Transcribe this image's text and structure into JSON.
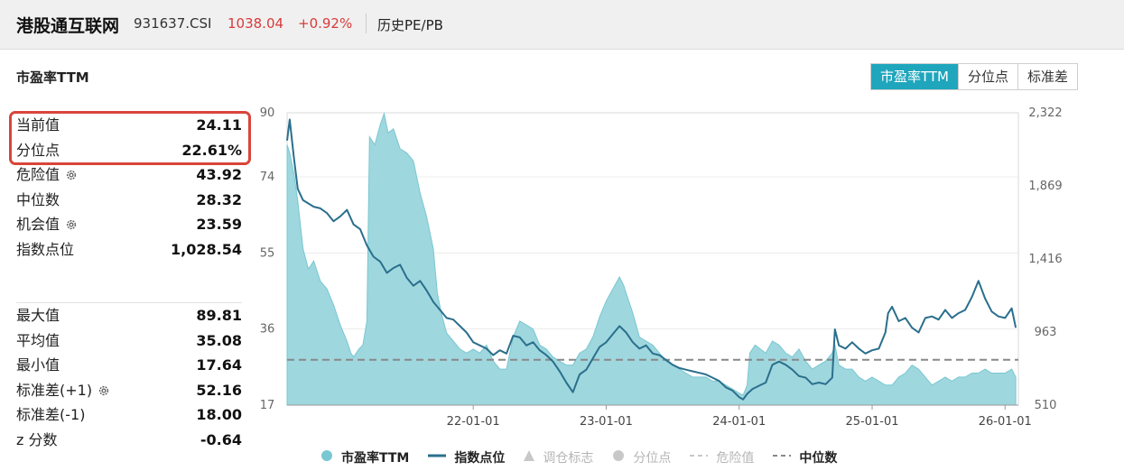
{
  "header": {
    "title": "港股通互联网",
    "code": "931637.CSI",
    "price": "1038.04",
    "change": "+0.92%",
    "link": "历史PE/PB"
  },
  "section_title": "市盈率TTM",
  "tabs": [
    {
      "label": "市盈率TTM",
      "active": true
    },
    {
      "label": "分位点",
      "active": false
    },
    {
      "label": "标准差",
      "active": false
    }
  ],
  "stats_top": [
    {
      "label": "当前值",
      "value": "24.11",
      "gear": false
    },
    {
      "label": "分位点",
      "value": "22.61%",
      "gear": false
    },
    {
      "label": "危险值",
      "value": "43.92",
      "gear": true
    },
    {
      "label": "中位数",
      "value": "28.32",
      "gear": false
    },
    {
      "label": "机会值",
      "value": "23.59",
      "gear": true
    },
    {
      "label": "指数点位",
      "value": "1,028.54",
      "gear": false
    }
  ],
  "stats_bottom": [
    {
      "label": "最大值",
      "value": "89.81",
      "gear": false
    },
    {
      "label": "平均值",
      "value": "35.08",
      "gear": false
    },
    {
      "label": "最小值",
      "value": "17.64",
      "gear": false
    },
    {
      "label": "标准差(+1)",
      "value": "52.16",
      "gear": true
    },
    {
      "label": "标准差(-1)",
      "value": "18.00",
      "gear": false
    },
    {
      "label": "z 分数",
      "value": "-0.64",
      "gear": false
    }
  ],
  "colors": {
    "accent": "#1fa6bd",
    "area_fill": "#9fd7de",
    "area_stroke": "#79c7d2",
    "index_line": "#2a6f8c",
    "median_line": "#888888",
    "highlight": "#d9453a",
    "price_up": "#d93a3a"
  },
  "chart_data": {
    "type": "area",
    "left_ticks": [
      "90",
      "74",
      "55",
      "36",
      "17"
    ],
    "right_ticks": [
      "2,322",
      "1,869",
      "1,416",
      "963",
      "510"
    ],
    "left_ylim": [
      17,
      90
    ],
    "right_ylim": [
      510,
      2322
    ],
    "x_ticks": [
      {
        "label": "22-01-01",
        "x": 2022.0
      },
      {
        "label": "23-01-01",
        "x": 2023.0
      },
      {
        "label": "24-01-01",
        "x": 2024.0
      },
      {
        "label": "25-01-01",
        "x": 2025.0
      },
      {
        "label": "26-01-01",
        "x": 2026.0
      }
    ],
    "xlim": [
      2020.6,
      2026.1
    ],
    "median": 28.32,
    "series": [
      {
        "name": "市盈率TTM",
        "kind": "area",
        "axis": "left",
        "points": [
          [
            2020.6,
            82
          ],
          [
            2020.62,
            80
          ],
          [
            2020.65,
            75
          ],
          [
            2020.68,
            68
          ],
          [
            2020.72,
            56
          ],
          [
            2020.76,
            51
          ],
          [
            2020.8,
            53
          ],
          [
            2020.85,
            48
          ],
          [
            2020.9,
            46
          ],
          [
            2020.95,
            42
          ],
          [
            2021.0,
            37
          ],
          [
            2021.05,
            33
          ],
          [
            2021.08,
            30
          ],
          [
            2021.1,
            29
          ],
          [
            2021.14,
            31
          ],
          [
            2021.17,
            32
          ],
          [
            2021.2,
            38
          ],
          [
            2021.22,
            84
          ],
          [
            2021.26,
            82
          ],
          [
            2021.3,
            87
          ],
          [
            2021.33,
            89.8
          ],
          [
            2021.36,
            85
          ],
          [
            2021.4,
            86
          ],
          [
            2021.45,
            81
          ],
          [
            2021.5,
            80
          ],
          [
            2021.55,
            78
          ],
          [
            2021.6,
            70
          ],
          [
            2021.65,
            64
          ],
          [
            2021.7,
            56
          ],
          [
            2021.73,
            45
          ],
          [
            2021.76,
            40
          ],
          [
            2021.8,
            35
          ],
          [
            2021.85,
            33
          ],
          [
            2021.9,
            31
          ],
          [
            2021.95,
            30
          ],
          [
            2022.0,
            31
          ],
          [
            2022.05,
            30
          ],
          [
            2022.1,
            32
          ],
          [
            2022.15,
            28
          ],
          [
            2022.2,
            26
          ],
          [
            2022.25,
            26
          ],
          [
            2022.3,
            34
          ],
          [
            2022.35,
            38
          ],
          [
            2022.4,
            37
          ],
          [
            2022.45,
            36
          ],
          [
            2022.5,
            32
          ],
          [
            2022.55,
            31
          ],
          [
            2022.6,
            29
          ],
          [
            2022.65,
            28
          ],
          [
            2022.7,
            27
          ],
          [
            2022.75,
            27
          ],
          [
            2022.8,
            30
          ],
          [
            2022.85,
            31
          ],
          [
            2022.9,
            34
          ],
          [
            2022.95,
            39
          ],
          [
            2023.0,
            43
          ],
          [
            2023.05,
            46
          ],
          [
            2023.1,
            49
          ],
          [
            2023.13,
            47
          ],
          [
            2023.17,
            43
          ],
          [
            2023.2,
            40
          ],
          [
            2023.25,
            34
          ],
          [
            2023.3,
            33
          ],
          [
            2023.35,
            32
          ],
          [
            2023.4,
            30
          ],
          [
            2023.45,
            28
          ],
          [
            2023.5,
            27
          ],
          [
            2023.55,
            26
          ],
          [
            2023.6,
            25
          ],
          [
            2023.65,
            24
          ],
          [
            2023.7,
            24
          ],
          [
            2023.75,
            24
          ],
          [
            2023.8,
            23
          ],
          [
            2023.85,
            23
          ],
          [
            2023.9,
            22
          ],
          [
            2023.95,
            21
          ],
          [
            2024.0,
            20
          ],
          [
            2024.03,
            19.5
          ],
          [
            2024.06,
            22
          ],
          [
            2024.08,
            30
          ],
          [
            2024.12,
            32
          ],
          [
            2024.16,
            31
          ],
          [
            2024.2,
            30
          ],
          [
            2024.25,
            33
          ],
          [
            2024.3,
            32
          ],
          [
            2024.35,
            30
          ],
          [
            2024.4,
            29
          ],
          [
            2024.45,
            31
          ],
          [
            2024.5,
            28
          ],
          [
            2024.55,
            26
          ],
          [
            2024.6,
            27
          ],
          [
            2024.65,
            28
          ],
          [
            2024.7,
            30
          ],
          [
            2024.72,
            32
          ],
          [
            2024.75,
            27
          ],
          [
            2024.8,
            26
          ],
          [
            2024.85,
            26
          ],
          [
            2024.9,
            24
          ],
          [
            2024.95,
            23
          ],
          [
            2025.0,
            24
          ],
          [
            2025.05,
            23
          ],
          [
            2025.1,
            22
          ],
          [
            2025.15,
            22
          ],
          [
            2025.2,
            24
          ],
          [
            2025.25,
            25
          ],
          [
            2025.3,
            27
          ],
          [
            2025.35,
            26
          ],
          [
            2025.4,
            24
          ],
          [
            2025.45,
            22
          ],
          [
            2025.5,
            23
          ],
          [
            2025.55,
            24
          ],
          [
            2025.6,
            23
          ],
          [
            2025.65,
            24
          ],
          [
            2025.7,
            24
          ],
          [
            2025.75,
            25
          ],
          [
            2025.8,
            25
          ],
          [
            2025.85,
            26
          ],
          [
            2025.9,
            25
          ],
          [
            2025.95,
            25
          ],
          [
            2026.0,
            25
          ],
          [
            2026.05,
            26
          ],
          [
            2026.08,
            24
          ]
        ]
      },
      {
        "name": "指数点位",
        "kind": "line",
        "axis": "right",
        "points": [
          [
            2020.6,
            2150
          ],
          [
            2020.62,
            2280
          ],
          [
            2020.65,
            2050
          ],
          [
            2020.68,
            1850
          ],
          [
            2020.72,
            1780
          ],
          [
            2020.76,
            1760
          ],
          [
            2020.8,
            1740
          ],
          [
            2020.85,
            1730
          ],
          [
            2020.9,
            1700
          ],
          [
            2020.95,
            1650
          ],
          [
            2021.0,
            1680
          ],
          [
            2021.05,
            1720
          ],
          [
            2021.1,
            1630
          ],
          [
            2021.15,
            1600
          ],
          [
            2021.2,
            1500
          ],
          [
            2021.25,
            1430
          ],
          [
            2021.3,
            1400
          ],
          [
            2021.35,
            1330
          ],
          [
            2021.4,
            1360
          ],
          [
            2021.45,
            1380
          ],
          [
            2021.5,
            1300
          ],
          [
            2021.55,
            1250
          ],
          [
            2021.6,
            1280
          ],
          [
            2021.65,
            1220
          ],
          [
            2021.7,
            1150
          ],
          [
            2021.75,
            1100
          ],
          [
            2021.8,
            1050
          ],
          [
            2021.85,
            1040
          ],
          [
            2021.9,
            1000
          ],
          [
            2021.95,
            960
          ],
          [
            2022.0,
            900
          ],
          [
            2022.05,
            880
          ],
          [
            2022.1,
            860
          ],
          [
            2022.15,
            820
          ],
          [
            2022.2,
            850
          ],
          [
            2022.25,
            830
          ],
          [
            2022.3,
            940
          ],
          [
            2022.35,
            930
          ],
          [
            2022.4,
            880
          ],
          [
            2022.45,
            900
          ],
          [
            2022.5,
            850
          ],
          [
            2022.55,
            820
          ],
          [
            2022.6,
            780
          ],
          [
            2022.65,
            720
          ],
          [
            2022.7,
            650
          ],
          [
            2022.75,
            590
          ],
          [
            2022.8,
            700
          ],
          [
            2022.85,
            730
          ],
          [
            2022.9,
            800
          ],
          [
            2022.95,
            870
          ],
          [
            2023.0,
            900
          ],
          [
            2023.05,
            950
          ],
          [
            2023.1,
            1000
          ],
          [
            2023.15,
            960
          ],
          [
            2023.2,
            900
          ],
          [
            2023.25,
            860
          ],
          [
            2023.3,
            880
          ],
          [
            2023.35,
            830
          ],
          [
            2023.4,
            820
          ],
          [
            2023.45,
            790
          ],
          [
            2023.5,
            760
          ],
          [
            2023.55,
            740
          ],
          [
            2023.6,
            730
          ],
          [
            2023.65,
            720
          ],
          [
            2023.7,
            710
          ],
          [
            2023.75,
            700
          ],
          [
            2023.8,
            680
          ],
          [
            2023.85,
            660
          ],
          [
            2023.9,
            620
          ],
          [
            2023.95,
            600
          ],
          [
            2024.0,
            560
          ],
          [
            2024.03,
            545
          ],
          [
            2024.06,
            580
          ],
          [
            2024.1,
            610
          ],
          [
            2024.15,
            630
          ],
          [
            2024.2,
            650
          ],
          [
            2024.25,
            760
          ],
          [
            2024.3,
            780
          ],
          [
            2024.35,
            760
          ],
          [
            2024.4,
            730
          ],
          [
            2024.45,
            690
          ],
          [
            2024.5,
            680
          ],
          [
            2024.55,
            640
          ],
          [
            2024.6,
            650
          ],
          [
            2024.65,
            640
          ],
          [
            2024.7,
            680
          ],
          [
            2024.72,
            980
          ],
          [
            2024.75,
            880
          ],
          [
            2024.8,
            860
          ],
          [
            2024.85,
            900
          ],
          [
            2024.9,
            860
          ],
          [
            2024.95,
            830
          ],
          [
            2025.0,
            850
          ],
          [
            2025.05,
            860
          ],
          [
            2025.1,
            960
          ],
          [
            2025.12,
            1080
          ],
          [
            2025.15,
            1120
          ],
          [
            2025.2,
            1030
          ],
          [
            2025.25,
            1050
          ],
          [
            2025.3,
            990
          ],
          [
            2025.35,
            960
          ],
          [
            2025.4,
            1050
          ],
          [
            2025.45,
            1060
          ],
          [
            2025.5,
            1040
          ],
          [
            2025.55,
            1100
          ],
          [
            2025.6,
            1050
          ],
          [
            2025.65,
            1080
          ],
          [
            2025.7,
            1100
          ],
          [
            2025.75,
            1180
          ],
          [
            2025.8,
            1280
          ],
          [
            2025.85,
            1170
          ],
          [
            2025.9,
            1090
          ],
          [
            2025.95,
            1060
          ],
          [
            2026.0,
            1050
          ],
          [
            2026.05,
            1110
          ],
          [
            2026.08,
            990
          ]
        ]
      }
    ],
    "legend": [
      {
        "label": "市盈率TTM",
        "marker": "dot",
        "active": true
      },
      {
        "label": "指数点位",
        "marker": "line",
        "active": true
      },
      {
        "label": "调仓标志",
        "marker": "triangle",
        "active": false
      },
      {
        "label": "分位点",
        "marker": "dot",
        "active": false
      },
      {
        "label": "危险值",
        "marker": "dash",
        "active": false
      },
      {
        "label": "中位数",
        "marker": "dash",
        "active": true
      }
    ]
  }
}
